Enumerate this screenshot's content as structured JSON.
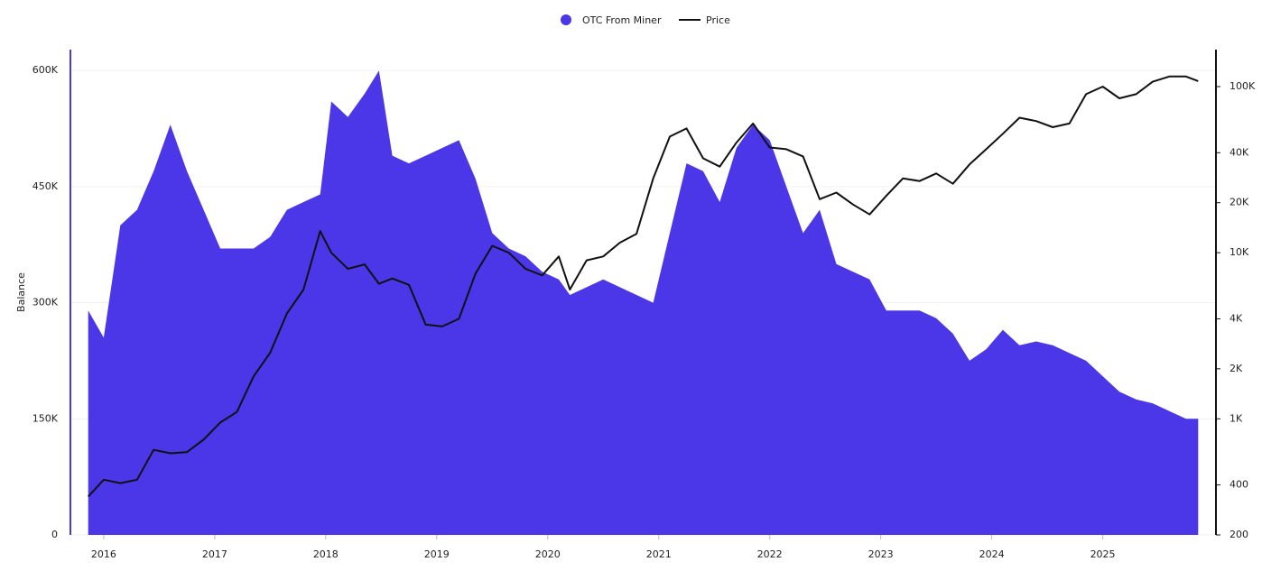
{
  "chart_data": {
    "type": "area-line",
    "y_label": "Balance",
    "x": [
      2015.86,
      2016.0,
      2016.15,
      2016.3,
      2016.45,
      2016.6,
      2016.75,
      2016.9,
      2017.05,
      2017.2,
      2017.35,
      2017.5,
      2017.65,
      2017.8,
      2017.95,
      2018.05,
      2018.2,
      2018.35,
      2018.48,
      2018.6,
      2018.75,
      2018.9,
      2019.05,
      2019.2,
      2019.35,
      2019.5,
      2019.65,
      2019.8,
      2019.95,
      2020.1,
      2020.2,
      2020.35,
      2020.5,
      2020.65,
      2020.8,
      2020.95,
      2021.1,
      2021.25,
      2021.4,
      2021.55,
      2021.7,
      2021.85,
      2022.0,
      2022.15,
      2022.3,
      2022.45,
      2022.6,
      2022.75,
      2022.9,
      2023.05,
      2023.2,
      2023.35,
      2023.5,
      2023.65,
      2023.8,
      2023.95,
      2024.1,
      2024.25,
      2024.4,
      2024.55,
      2024.7,
      2024.85,
      2025.0,
      2025.15,
      2025.3,
      2025.45,
      2025.6,
      2025.75,
      2025.86
    ],
    "series": [
      {
        "name": "OTC From Miner",
        "color": "#4b36e8",
        "values": [
          290000,
          255000,
          400000,
          420000,
          470000,
          530000,
          470000,
          420000,
          370000,
          370000,
          370000,
          385000,
          420000,
          430000,
          440000,
          560000,
          540000,
          570000,
          600000,
          490000,
          480000,
          490000,
          500000,
          510000,
          460000,
          390000,
          370000,
          360000,
          340000,
          330000,
          310000,
          320000,
          330000,
          320000,
          310000,
          300000,
          390000,
          480000,
          470000,
          430000,
          500000,
          530000,
          510000,
          450000,
          390000,
          420000,
          350000,
          340000,
          330000,
          290000,
          290000,
          290000,
          280000,
          260000,
          225000,
          240000,
          265000,
          245000,
          250000,
          245000,
          235000,
          225000,
          205000,
          185000,
          175000,
          170000,
          160000,
          150000,
          150000
        ]
      },
      {
        "name": "Price",
        "color": "#111111",
        "axis": "y2",
        "values": [
          340,
          430,
          410,
          430,
          650,
          620,
          630,
          750,
          950,
          1100,
          1800,
          2500,
          4300,
          6000,
          13500,
          10000,
          8000,
          8500,
          6500,
          7000,
          6400,
          3700,
          3600,
          4000,
          7500,
          11000,
          10000,
          8000,
          7300,
          9500,
          6000,
          9000,
          9500,
          11500,
          13000,
          28000,
          50000,
          56000,
          37000,
          33000,
          46000,
          60000,
          43000,
          42000,
          38000,
          21000,
          23000,
          19500,
          17000,
          22000,
          28000,
          27000,
          30000,
          26000,
          34000,
          42000,
          52000,
          65000,
          62000,
          57000,
          60000,
          90000,
          100000,
          85000,
          90000,
          107000,
          115000,
          115000,
          108000
        ]
      }
    ],
    "xlim": [
      2015.7,
      2026.02
    ],
    "xticks": [
      2016,
      2017,
      2018,
      2019,
      2020,
      2021,
      2022,
      2023,
      2024,
      2025
    ],
    "ylim": [
      0,
      627000
    ],
    "yticks": [
      0,
      {
        "value": 150000,
        "label": "150K"
      },
      {
        "value": 300000,
        "label": "300K"
      },
      {
        "value": 450000,
        "label": "450K"
      },
      {
        "value": 600000,
        "label": "600K"
      }
    ],
    "y2lim": [
      200,
      167000
    ],
    "y2log": true,
    "y2ticks": [
      200,
      400,
      {
        "value": 1000,
        "label": "1K"
      },
      {
        "value": 2000,
        "label": "2K"
      },
      {
        "value": 4000,
        "label": "4K"
      },
      {
        "value": 10000,
        "label": "10K"
      },
      {
        "value": 20000,
        "label": "20K"
      },
      {
        "value": 40000,
        "label": "40K"
      },
      {
        "value": 100000,
        "label": "100K"
      }
    ],
    "grid": true
  }
}
